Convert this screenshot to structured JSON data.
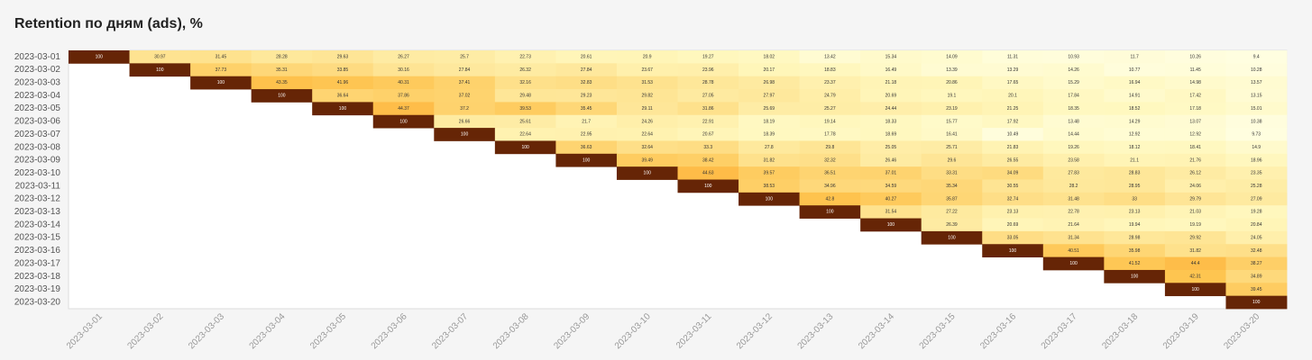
{
  "chart_data": {
    "type": "heatmap",
    "title": "Retention по дням (ads), %",
    "xlabel": "",
    "ylabel": "",
    "colormap": "YlOrBr",
    "rows": [
      "2023-03-01",
      "2023-03-02",
      "2023-03-03",
      "2023-03-04",
      "2023-03-05",
      "2023-03-06",
      "2023-03-07",
      "2023-03-08",
      "2023-03-09",
      "2023-03-10",
      "2023-03-11",
      "2023-03-12",
      "2023-03-13",
      "2023-03-14",
      "2023-03-15",
      "2023-03-16",
      "2023-03-17",
      "2023-03-18",
      "2023-03-19",
      "2023-03-20"
    ],
    "columns": [
      "2023-03-01",
      "2023-03-02",
      "2023-03-03",
      "2023-03-04",
      "2023-03-05",
      "2023-03-06",
      "2023-03-07",
      "2023-03-08",
      "2023-03-09",
      "2023-03-10",
      "2023-03-11",
      "2023-03-12",
      "2023-03-13",
      "2023-03-14",
      "2023-03-15",
      "2023-03-16",
      "2023-03-17",
      "2023-03-18",
      "2023-03-19",
      "2023-03-20"
    ],
    "values": [
      [
        100,
        30.97,
        31.45,
        28.28,
        29.63,
        26.27,
        25.7,
        22.73,
        20.61,
        20.9,
        19.27,
        18.02,
        13.42,
        15.34,
        14.09,
        11.31,
        10.93,
        11.7,
        10.26,
        9.4
      ],
      [
        null,
        100,
        37.73,
        35.31,
        33.85,
        30.16,
        27.84,
        26.32,
        27.84,
        23.67,
        23.96,
        20.17,
        18.83,
        16.49,
        13.39,
        13.29,
        14.26,
        10.77,
        11.45,
        10.28
      ],
      [
        null,
        null,
        100,
        43.35,
        41.96,
        40.31,
        37.41,
        32.16,
        32.83,
        31.53,
        28.78,
        26.98,
        23.37,
        21.18,
        20.86,
        17.65,
        15.29,
        16.94,
        14.98,
        13.57
      ],
      [
        null,
        null,
        null,
        100,
        36.64,
        37.86,
        37.02,
        29.48,
        29.23,
        29.82,
        27.05,
        27.97,
        24.79,
        20.69,
        19.1,
        20.1,
        17.84,
        14.91,
        17.42,
        13.15
      ],
      [
        null,
        null,
        null,
        null,
        100,
        44.37,
        37.2,
        39.53,
        35.45,
        29.11,
        31.86,
        25.69,
        25.27,
        24.44,
        23.19,
        21.25,
        18.35,
        18.52,
        17.18,
        15.01
      ],
      [
        null,
        null,
        null,
        null,
        null,
        100,
        26.66,
        25.61,
        21.7,
        24.26,
        22.91,
        18.19,
        19.14,
        18.33,
        15.77,
        17.92,
        13.48,
        14.29,
        13.07,
        10.38
      ],
      [
        null,
        null,
        null,
        null,
        null,
        null,
        100,
        22.64,
        22.95,
        22.64,
        20.67,
        18.39,
        17.78,
        18.69,
        16.41,
        10.49,
        14.44,
        12.92,
        12.92,
        9.73
      ],
      [
        null,
        null,
        null,
        null,
        null,
        null,
        null,
        100,
        36.63,
        32.64,
        33.3,
        27.8,
        29.8,
        25.05,
        25.71,
        21.83,
        19.26,
        18.12,
        18.41,
        14.9
      ],
      [
        null,
        null,
        null,
        null,
        null,
        null,
        null,
        null,
        100,
        39.49,
        38.42,
        31.82,
        32.32,
        26.46,
        29.6,
        26.55,
        23.58,
        21.1,
        21.76,
        18.96
      ],
      [
        null,
        null,
        null,
        null,
        null,
        null,
        null,
        null,
        null,
        100,
        44.63,
        39.57,
        36.51,
        37.01,
        33.31,
        34.09,
        27.83,
        28.83,
        26.12,
        23.35
      ],
      [
        null,
        null,
        null,
        null,
        null,
        null,
        null,
        null,
        null,
        null,
        100,
        38.53,
        34.96,
        34.59,
        35.34,
        30.55,
        28.2,
        28.95,
        24.06,
        25.28
      ],
      [
        null,
        null,
        null,
        null,
        null,
        null,
        null,
        null,
        null,
        null,
        null,
        100,
        42.8,
        40.27,
        35.87,
        32.74,
        31.48,
        33,
        29.79,
        27.09
      ],
      [
        null,
        null,
        null,
        null,
        null,
        null,
        null,
        null,
        null,
        null,
        null,
        null,
        100,
        31.54,
        27.22,
        23.13,
        22.78,
        23.13,
        21.03,
        19.28
      ],
      [
        null,
        null,
        null,
        null,
        null,
        null,
        null,
        null,
        null,
        null,
        null,
        null,
        null,
        100,
        26.39,
        20.69,
        21.64,
        19.94,
        19.19,
        20.84
      ],
      [
        null,
        null,
        null,
        null,
        null,
        null,
        null,
        null,
        null,
        null,
        null,
        null,
        null,
        null,
        100,
        33.05,
        31.34,
        28.98,
        29.92,
        24.05
      ],
      [
        null,
        null,
        null,
        null,
        null,
        null,
        null,
        null,
        null,
        null,
        null,
        null,
        null,
        null,
        null,
        100,
        40.51,
        35.98,
        31.82,
        32.48
      ],
      [
        null,
        null,
        null,
        null,
        null,
        null,
        null,
        null,
        null,
        null,
        null,
        null,
        null,
        null,
        null,
        null,
        100,
        41.52,
        44.4,
        38.27
      ],
      [
        null,
        null,
        null,
        null,
        null,
        null,
        null,
        null,
        null,
        null,
        null,
        null,
        null,
        null,
        null,
        null,
        null,
        100,
        42.31,
        34.89
      ],
      [
        null,
        null,
        null,
        null,
        null,
        null,
        null,
        null,
        null,
        null,
        null,
        null,
        null,
        null,
        null,
        null,
        null,
        null,
        100,
        39.45
      ],
      [
        null,
        null,
        null,
        null,
        null,
        null,
        null,
        null,
        null,
        null,
        null,
        null,
        null,
        null,
        null,
        null,
        null,
        null,
        null,
        100
      ]
    ],
    "grid": false,
    "legend": "none"
  }
}
